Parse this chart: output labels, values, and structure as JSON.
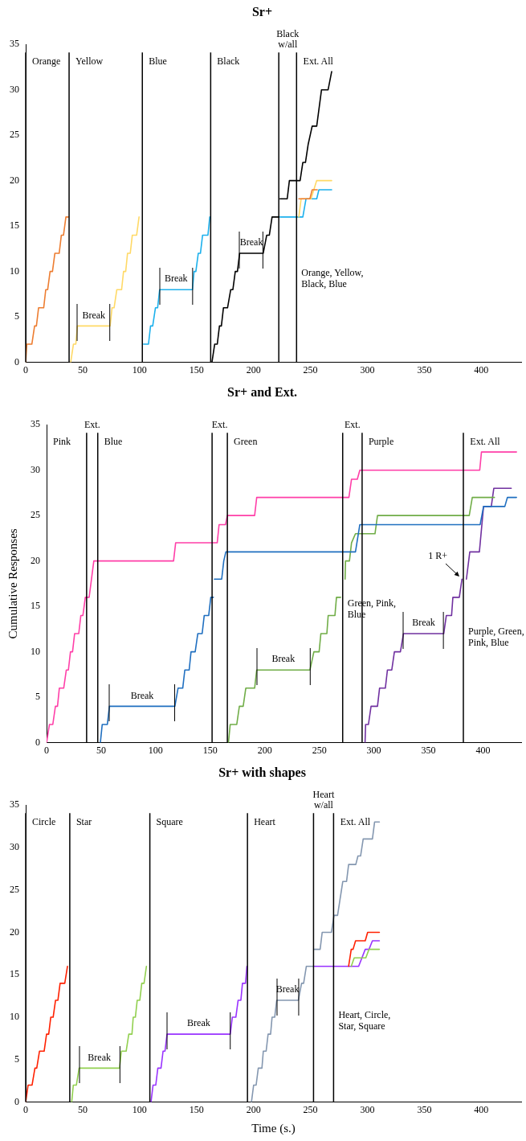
{
  "chart_data": [
    {
      "type": "line",
      "title": "Sr+",
      "xlim": [
        0,
        435
      ],
      "xticks": [
        0,
        50,
        100,
        150,
        200,
        250,
        300,
        350,
        400
      ],
      "ylim": [
        0,
        35
      ],
      "yticks": [
        0,
        5,
        10,
        15,
        20,
        25,
        30,
        35
      ],
      "grid": false,
      "series": [
        {
          "color": "#ed7d31",
          "x": [
            0,
            1,
            5.4,
            7.8,
            9.4,
            11.3,
            15.8,
            17.6,
            19.3,
            21.4,
            23.5,
            25.6,
            29.4,
            31.3,
            33.2,
            35.3,
            37.6,
            138,
            239.8,
            249.5,
            251.5,
            256
          ],
          "values": [
            0,
            2,
            2,
            4,
            4,
            6,
            6,
            8,
            8,
            10,
            10,
            12,
            12,
            14,
            14,
            16,
            16,
            null,
            18,
            18,
            19,
            19
          ]
        },
        {
          "color": "#ffd966",
          "x": [
            39.5,
            41.9,
            44,
            45.4,
            74.1,
            75.8,
            77.6,
            80,
            84.2,
            85.9,
            87.8,
            89.4,
            91.8,
            93.6,
            97.4,
            99.5,
            170,
            239.8,
            241.8,
            250.5,
            255.4,
            268.6
          ],
          "values": [
            0,
            2,
            2,
            4,
            4,
            6,
            6,
            8,
            8,
            10,
            10,
            12,
            12,
            14,
            14,
            16,
            null,
            16,
            18,
            18,
            20,
            20
          ]
        },
        {
          "color": "#1cb0ec",
          "x": [
            103.5,
            107.8,
            109.6,
            111.5,
            113.9,
            115.8,
            117.6,
            146.4,
            147.8,
            149.4,
            151.5,
            153.4,
            155.3,
            160,
            161.6,
            190,
            223.3,
            243.3,
            246.1,
            255.5,
            257.4,
            268.6
          ],
          "values": [
            2,
            2,
            4,
            4,
            6,
            6,
            8,
            8,
            10,
            10,
            12,
            12,
            14,
            14,
            16,
            null,
            16,
            16,
            18,
            18,
            19,
            19
          ]
        },
        {
          "color": "#000000",
          "x": [
            163.5,
            165.9,
            168.2,
            170.1,
            171.8,
            173.6,
            177.2,
            180,
            181.9,
            184,
            185.9,
            187.8,
            208.5,
            211.6,
            213.9,
            216.3,
            222.6,
            223,
            223.3,
            229.6,
            231.5,
            240.9,
            243.3,
            245.6,
            248,
            251.5,
            255.5,
            259.7,
            265.5,
            268.6
          ],
          "values": [
            0,
            2,
            2,
            4,
            4,
            6,
            6,
            8,
            8,
            10,
            10,
            12,
            12,
            14,
            14,
            16,
            16,
            null,
            18,
            18,
            20,
            20,
            22,
            22,
            24,
            26,
            26,
            30,
            30,
            32
          ]
        }
      ],
      "ref_lines": [
        {
          "axis": "x",
          "value": 0,
          "label": "Orange"
        },
        {
          "axis": "x",
          "value": 38.1,
          "label": "Yellow"
        },
        {
          "axis": "x",
          "value": 102.4,
          "label": "Blue"
        },
        {
          "axis": "x",
          "value": 162.4,
          "label": "Black"
        },
        {
          "axis": "x",
          "value": 222.2,
          "label": "Black w/all"
        },
        {
          "axis": "x",
          "value": 237.8,
          "label": "Ext. All"
        }
      ],
      "annotations": [
        {
          "text": "Break",
          "x": 45.4,
          "y": 4
        },
        {
          "text": "Break",
          "x": 117.6,
          "y": 8
        },
        {
          "text": "Break",
          "x": 187.8,
          "y": 12
        },
        {
          "text": "Orange, Yellow, Black, Blue",
          "x": 237.8,
          "y": 9.2
        }
      ]
    },
    {
      "type": "line",
      "title": "Sr+ and Ext.",
      "ylabel": "Cumulative Responses",
      "xlim": [
        0,
        435
      ],
      "xticks": [
        0,
        50,
        100,
        150,
        200,
        250,
        300,
        350,
        400
      ],
      "ylim": [
        0,
        35
      ],
      "yticks": [
        0,
        5,
        10,
        15,
        20,
        25,
        30,
        35
      ],
      "grid": false,
      "series": [
        {
          "color": "#ff3fa8",
          "x": [
            0,
            2.6,
            5.7,
            8.1,
            10,
            11.7,
            15.7,
            18.1,
            20,
            21.9,
            23.8,
            25.7,
            29.5,
            31.4,
            33.3,
            35.5,
            39,
            43.3,
            116.4,
            118.3,
            156.4,
            158.1,
            164,
            165.7,
            190.7,
            192.6,
            277.1,
            279.5,
            284.8,
            287.1,
            397,
            398.6,
            430.7
          ],
          "values": [
            0,
            2,
            2,
            4,
            4,
            6,
            6,
            8,
            8,
            10,
            10,
            12,
            12,
            14,
            14,
            16,
            16,
            20,
            20,
            22,
            22,
            24,
            24,
            25,
            25,
            27,
            27,
            29,
            29,
            30,
            30,
            32,
            32
          ]
        },
        {
          "color": "#1f6fc0",
          "x": [
            49.3,
            51,
            55.7,
            57.6,
            117.6,
            120.5,
            124.8,
            126.7,
            130.7,
            132.4,
            136.2,
            138.6,
            142.6,
            144.5,
            148.6,
            150.5,
            152.9,
            153.3,
            153.8,
            160.5,
            162.4,
            164.3,
            283.1,
            287.1,
            397.4,
            400.5,
            420,
            422.4,
            430.7
          ],
          "values": [
            0,
            2,
            2,
            4,
            4,
            6,
            6,
            8,
            8,
            10,
            10,
            12,
            12,
            14,
            14,
            16,
            16,
            null,
            18,
            18,
            20,
            21,
            21,
            24,
            24,
            26,
            26,
            27,
            27
          ]
        },
        {
          "color": "#70ad47",
          "x": [
            166.7,
            168.3,
            174.3,
            176.7,
            180.2,
            182.6,
            190.7,
            192.6,
            241.4,
            245,
            249.8,
            251.4,
            256.9,
            258.1,
            264.3,
            265.7,
            269.5,
            271.5,
            273.6,
            274,
            277.6,
            279.5,
            283.1,
            301,
            303.3,
            387.4,
            390.2,
            410.5
          ],
          "values": [
            0,
            2,
            2,
            4,
            4,
            6,
            6,
            8,
            8,
            10,
            10,
            12,
            12,
            14,
            14,
            16,
            16,
            null,
            18,
            20,
            20,
            22,
            23,
            23,
            25,
            25,
            27,
            27
          ]
        },
        {
          "color": "#7030a0",
          "x": [
            291.9,
            292.4,
            295,
            297.4,
            303.3,
            305.2,
            310.5,
            312.4,
            316.4,
            318.8,
            324.3,
            327.1,
            364,
            366.4,
            371.2,
            372.4,
            378.3,
            380.7,
            382.7,
            384.8,
            387.9,
            396.7,
            400.5,
            407.6,
            409.9,
            425.9
          ],
          "values": [
            0,
            2,
            2,
            4,
            4,
            6,
            6,
            8,
            8,
            10,
            10,
            12,
            12,
            14,
            14,
            16,
            16,
            18,
            null,
            18,
            21,
            21,
            26,
            26,
            28,
            28
          ]
        }
      ],
      "ref_lines": [
        {
          "axis": "x",
          "value": 36.7,
          "label": "Ext."
        },
        {
          "axis": "x",
          "value": 46.9,
          "label": "Blue"
        },
        {
          "axis": "x",
          "value": 151.7,
          "label": "Ext."
        },
        {
          "axis": "x",
          "value": 165.7,
          "label": "Green"
        },
        {
          "axis": "x",
          "value": 271.4,
          "label": "Ext."
        },
        {
          "axis": "x",
          "value": 289.2,
          "label": "Purple"
        },
        {
          "axis": "x",
          "value": 382,
          "label": "Ext. All"
        }
      ],
      "annotations": [
        "Pink",
        {
          "text": "Break",
          "x": 57.6,
          "y": 4
        },
        {
          "text": "Break",
          "x": 192.6,
          "y": 8
        },
        {
          "text": "Break",
          "x": 327.1,
          "y": 12
        },
        {
          "text": "1 R+",
          "x": 380.7,
          "y": 18
        },
        {
          "text": "Green, Pink, Blue",
          "x": 271.4,
          "y": 14.7
        },
        {
          "text": "Purple, Green, Pink, Blue",
          "x": 382,
          "y": 11.6
        }
      ]
    },
    {
      "type": "line",
      "title": "Sr+ with shapes",
      "xlabel": "Time (s.)",
      "xlim": [
        0,
        435
      ],
      "xticks": [
        0,
        50,
        100,
        150,
        200,
        250,
        300,
        350,
        400
      ],
      "ylim": [
        0,
        35
      ],
      "yticks": [
        0,
        5,
        10,
        15,
        20,
        25,
        30,
        35
      ],
      "grid": false,
      "series": [
        {
          "color": "#ff2000",
          "x": [
            0,
            2.1,
            5.6,
            8.1,
            9.7,
            12.1,
            16.2,
            18.3,
            20.2,
            22,
            24.1,
            26.2,
            28.3,
            30.2,
            34.3,
            36.7,
            160,
            283.5,
            285.8,
            287.4,
            289.6,
            298.1,
            300.2,
            310.5
          ],
          "values": [
            0,
            2,
            2,
            4,
            4,
            6,
            6,
            8,
            8,
            10,
            10,
            12,
            12,
            14,
            14,
            16,
            null,
            16,
            18,
            18,
            19,
            19,
            20,
            20
          ]
        },
        {
          "color": "#92d050",
          "x": [
            40.4,
            41.8,
            44.5,
            46.9,
            82.4,
            84,
            88.2,
            90.5,
            93.3,
            94.4,
            96.3,
            97.9,
            100.2,
            101.9,
            103.9,
            106,
            200,
            285.8,
            288.4,
            298.6,
            301.4,
            310.5
          ],
          "values": [
            0,
            2,
            2,
            4,
            4,
            6,
            6,
            8,
            8,
            10,
            10,
            12,
            12,
            14,
            14,
            16,
            null,
            16,
            17,
            17,
            18,
            18
          ]
        },
        {
          "color": "#9933ff",
          "x": [
            110,
            111.8,
            114.2,
            116,
            118.8,
            120.6,
            122.3,
            124.1,
            179.6,
            181.4,
            184.5,
            186.5,
            188.9,
            190.3,
            193,
            194.2,
            224,
            253.4,
            292.3,
            298.1,
            301.4,
            304.4,
            310.5
          ],
          "values": [
            0,
            2,
            2,
            4,
            4,
            6,
            6,
            8,
            8,
            10,
            10,
            12,
            12,
            14,
            14,
            16,
            null,
            16,
            16,
            18,
            18,
            19,
            19
          ]
        },
        {
          "color": "#8497b0",
          "x": [
            198.2,
            200.1,
            202.3,
            204.2,
            207.4,
            208.6,
            211.1,
            212.8,
            215,
            216.3,
            218.6,
            220.4,
            239.4,
            242.2,
            244,
            246.4,
            252.2,
            252.8,
            253.4,
            258.5,
            260.3,
            268.4,
            270.7,
            273.8,
            278.4,
            281.7,
            283.5,
            289.8,
            291.7,
            294,
            296.3,
            304.4,
            306.3,
            310.5
          ],
          "values": [
            0,
            2,
            2,
            4,
            4,
            6,
            6,
            8,
            8,
            10,
            10,
            12,
            12,
            14,
            14,
            16,
            16,
            null,
            18,
            18,
            20,
            20,
            22,
            22,
            26,
            26,
            28,
            28,
            29,
            29,
            31,
            31,
            33,
            33
          ]
        }
      ],
      "ref_lines": [
        {
          "axis": "x",
          "value": 0,
          "label": "Circle"
        },
        {
          "axis": "x",
          "value": 38.7,
          "label": "Star"
        },
        {
          "axis": "x",
          "value": 109,
          "label": "Square"
        },
        {
          "axis": "x",
          "value": 194.7,
          "label": "Heart"
        },
        {
          "axis": "x",
          "value": 252.7,
          "label": "Heart w/all"
        },
        {
          "axis": "x",
          "value": 270.3,
          "label": "Ext. All"
        }
      ],
      "annotations": [
        {
          "text": "Break",
          "x": 46.9,
          "y": 4
        },
        {
          "text": "Break",
          "x": 124.1,
          "y": 8
        },
        {
          "text": "Break",
          "x": 220.4,
          "y": 12
        },
        {
          "text": "Heart, Circle, Star, Square",
          "x": 270.3,
          "y": 9.5
        }
      ]
    }
  ]
}
